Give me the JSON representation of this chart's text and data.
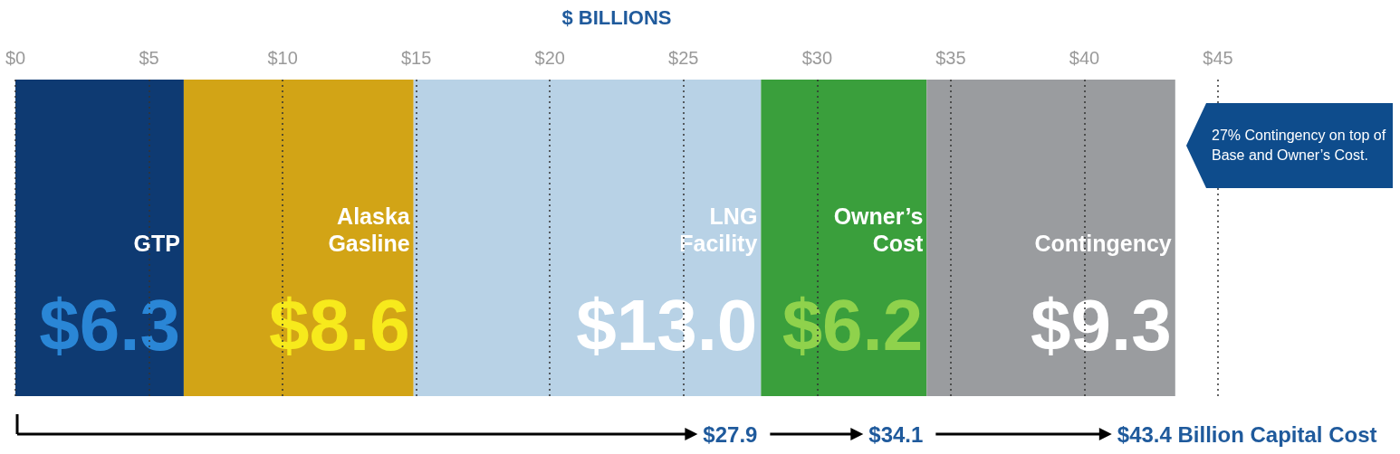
{
  "chart_data": {
    "type": "bar",
    "orientation": "horizontal",
    "stacked": true,
    "xlabel": "$ BILLIONS",
    "categories": [
      null
    ],
    "xlim": [
      0,
      45
    ],
    "xticks": [
      {
        "value": 0,
        "label": "$0"
      },
      {
        "value": 5,
        "label": "$5"
      },
      {
        "value": 10,
        "label": "$10"
      },
      {
        "value": 15,
        "label": "$15"
      },
      {
        "value": 20,
        "label": "$20"
      },
      {
        "value": 25,
        "label": "$25"
      },
      {
        "value": 30,
        "label": "$30"
      },
      {
        "value": 35,
        "label": "$35"
      },
      {
        "value": 40,
        "label": "$40"
      },
      {
        "value": 45,
        "label": "$45"
      }
    ],
    "grid": "x",
    "legend": false,
    "tick_labels": "x",
    "series": [
      {
        "name": "GTP",
        "color": "#0e3a72",
        "values": [
          6.3
        ],
        "value_labels": [
          "$6.3"
        ]
      },
      {
        "name": "Alaska Gasline",
        "color": "#d2a416",
        "values": [
          8.6
        ],
        "value_labels": [
          "$8.6"
        ]
      },
      {
        "name": "LNG Facility",
        "color": "#b8d2e6",
        "values": [
          13.0
        ],
        "value_labels": [
          "$13.0"
        ]
      },
      {
        "name": "Owner’s Cost",
        "color": "#3a9f3c",
        "values": [
          6.2
        ],
        "value_labels": [
          "$6.2"
        ]
      },
      {
        "name": "Contingency",
        "color": "#9a9c9f",
        "values": [
          9.3
        ],
        "value_labels": [
          "$9.3"
        ]
      }
    ],
    "annotations": [
      "$27.9",
      "$34.1",
      "$43.4 Billion Capital Cost",
      "27% Contingency on top of Base and Owner’s Cost."
    ]
  }
}
